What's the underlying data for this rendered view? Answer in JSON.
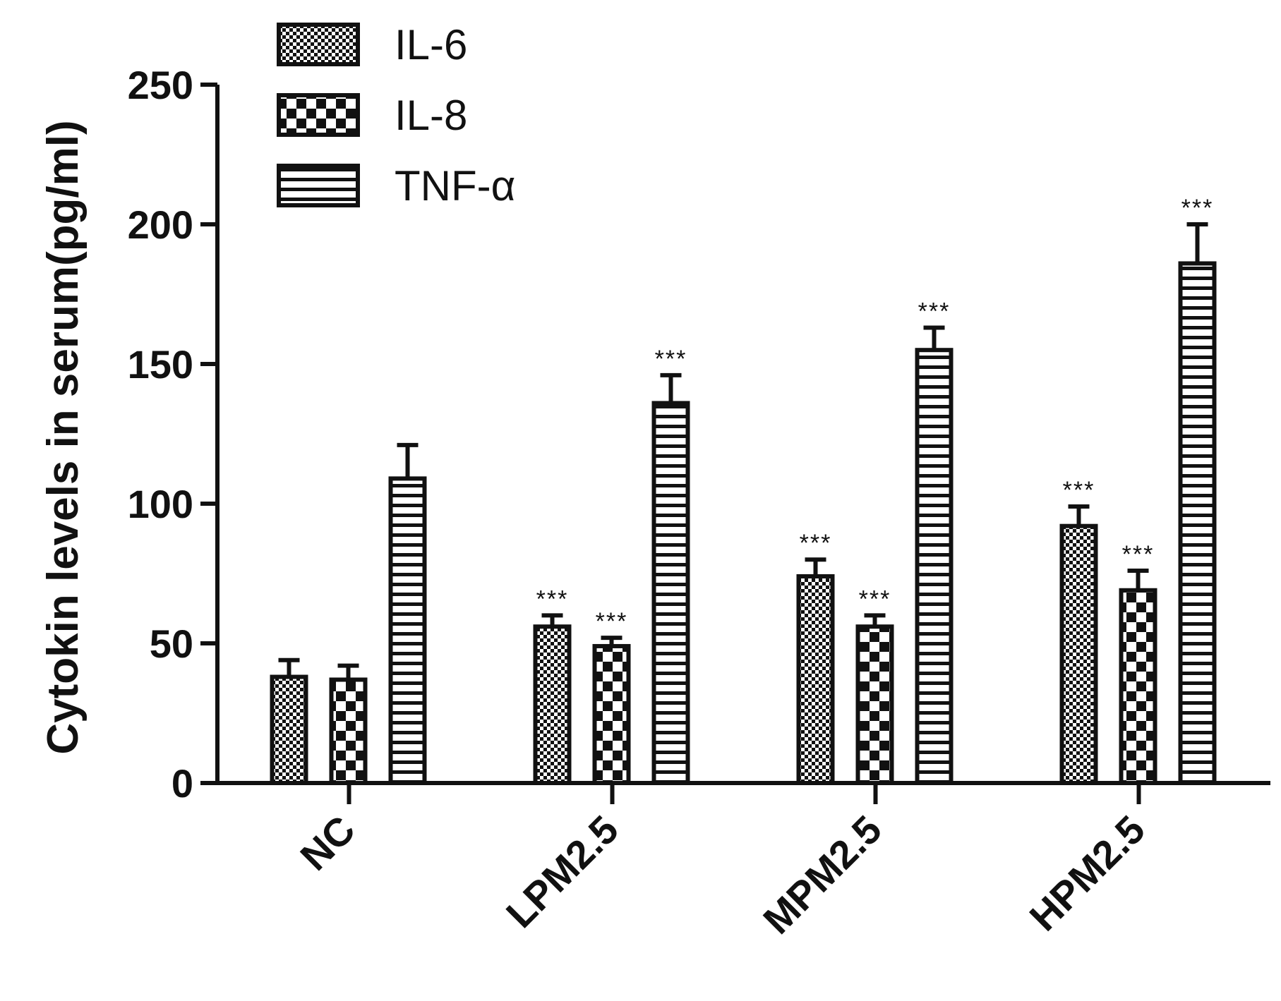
{
  "chart_data": {
    "type": "bar",
    "ylabel": "Cytokin levels in serum(pg/ml)",
    "xlabel": "",
    "ylim": [
      0,
      250
    ],
    "yticks": [
      "0",
      "50",
      "100",
      "150",
      "200",
      "250"
    ],
    "categories": [
      "NC",
      "LPM2.5",
      "MPM2.5",
      "HPM2.5"
    ],
    "legend_position": "top-left",
    "series": [
      {
        "name": "IL-6",
        "pattern": "checker-fine",
        "values": [
          38,
          56,
          74,
          92
        ],
        "errors": [
          6,
          4,
          6,
          7
        ],
        "significance": [
          "",
          "***",
          "***",
          "***"
        ]
      },
      {
        "name": "IL-8",
        "pattern": "checker-coarse",
        "values": [
          37,
          49,
          56,
          69
        ],
        "errors": [
          5,
          3,
          4,
          7
        ],
        "significance": [
          "",
          "***",
          "***",
          "***"
        ]
      },
      {
        "name": "TNF-α",
        "pattern": "horizontal-stripes",
        "values": [
          109,
          136,
          155,
          186
        ],
        "errors": [
          12,
          10,
          8,
          14
        ],
        "significance": [
          "",
          "***",
          "***",
          "***"
        ]
      }
    ],
    "colors": {
      "ink": "#111111",
      "background": "#ffffff"
    }
  }
}
